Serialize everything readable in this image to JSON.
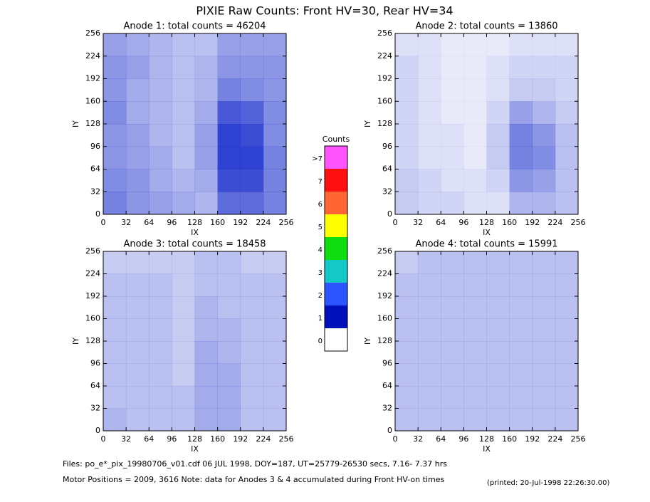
{
  "title": "PIXIE Raw Counts:  Front HV=30, Rear HV=34",
  "chart_data": [
    {
      "type": "heatmap",
      "title": "Anode 1: total counts = 46204",
      "xlabel": "IX",
      "ylabel": "IY",
      "xlim": [
        0,
        256
      ],
      "ylim": [
        0,
        256
      ],
      "xticks": [
        0,
        32,
        64,
        96,
        128,
        160,
        192,
        224,
        256
      ],
      "yticks": [
        0,
        32,
        64,
        96,
        128,
        160,
        192,
        224,
        256
      ],
      "color": "#1a2ecc",
      "values": [
        [
          0.6,
          0.5,
          0.45,
          0.4,
          0.35,
          0.7,
          0.7,
          0.6
        ],
        [
          0.55,
          0.5,
          0.4,
          0.35,
          0.4,
          0.85,
          0.85,
          0.6
        ],
        [
          0.5,
          0.45,
          0.4,
          0.3,
          0.45,
          0.9,
          0.9,
          0.6
        ],
        [
          0.5,
          0.45,
          0.35,
          0.3,
          0.45,
          0.9,
          0.85,
          0.55
        ],
        [
          0.55,
          0.4,
          0.35,
          0.3,
          0.4,
          0.8,
          0.75,
          0.55
        ],
        [
          0.5,
          0.4,
          0.35,
          0.3,
          0.35,
          0.6,
          0.55,
          0.5
        ],
        [
          0.5,
          0.45,
          0.35,
          0.3,
          0.35,
          0.5,
          0.5,
          0.5
        ],
        [
          0.45,
          0.4,
          0.35,
          0.3,
          0.3,
          0.45,
          0.45,
          0.45
        ]
      ]
    },
    {
      "type": "heatmap",
      "title": "Anode 2: total counts = 13860",
      "xlabel": "IX",
      "ylabel": "IY",
      "xlim": [
        0,
        256
      ],
      "ylim": [
        0,
        256
      ],
      "xticks": [
        0,
        32,
        64,
        96,
        128,
        160,
        192,
        224,
        256
      ],
      "yticks": [
        0,
        32,
        64,
        96,
        128,
        160,
        192,
        224,
        256
      ],
      "color": "#1a2ecc",
      "values": [
        [
          0.25,
          0.2,
          0.2,
          0.15,
          0.15,
          0.35,
          0.35,
          0.3
        ],
        [
          0.25,
          0.2,
          0.15,
          0.15,
          0.2,
          0.5,
          0.45,
          0.3
        ],
        [
          0.2,
          0.15,
          0.15,
          0.1,
          0.25,
          0.6,
          0.55,
          0.3
        ],
        [
          0.2,
          0.15,
          0.15,
          0.1,
          0.25,
          0.6,
          0.5,
          0.3
        ],
        [
          0.2,
          0.15,
          0.1,
          0.1,
          0.2,
          0.45,
          0.35,
          0.25
        ],
        [
          0.2,
          0.15,
          0.1,
          0.1,
          0.15,
          0.25,
          0.25,
          0.2
        ],
        [
          0.2,
          0.15,
          0.1,
          0.1,
          0.15,
          0.2,
          0.2,
          0.2
        ],
        [
          0.15,
          0.15,
          0.1,
          0.1,
          0.1,
          0.15,
          0.15,
          0.15
        ]
      ]
    },
    {
      "type": "heatmap",
      "title": "Anode 3: total counts = 18458",
      "xlabel": "IX",
      "ylabel": "IY",
      "xlim": [
        0,
        256
      ],
      "ylim": [
        0,
        256
      ],
      "xticks": [
        0,
        32,
        64,
        96,
        128,
        160,
        192,
        224,
        256
      ],
      "yticks": [
        0,
        32,
        64,
        96,
        128,
        160,
        192,
        224,
        256
      ],
      "color": "#1a2ecc",
      "values": [
        [
          0.35,
          0.3,
          0.3,
          0.3,
          0.4,
          0.4,
          0.3,
          0.3
        ],
        [
          0.3,
          0.3,
          0.3,
          0.3,
          0.4,
          0.4,
          0.3,
          0.3
        ],
        [
          0.3,
          0.3,
          0.3,
          0.25,
          0.4,
          0.4,
          0.3,
          0.3
        ],
        [
          0.3,
          0.3,
          0.3,
          0.25,
          0.4,
          0.35,
          0.3,
          0.3
        ],
        [
          0.3,
          0.3,
          0.3,
          0.25,
          0.35,
          0.35,
          0.3,
          0.3
        ],
        [
          0.3,
          0.3,
          0.3,
          0.25,
          0.35,
          0.3,
          0.3,
          0.3
        ],
        [
          0.3,
          0.3,
          0.3,
          0.25,
          0.3,
          0.3,
          0.3,
          0.3
        ],
        [
          0.25,
          0.25,
          0.25,
          0.25,
          0.3,
          0.3,
          0.25,
          0.25
        ]
      ]
    },
    {
      "type": "heatmap",
      "title": "Anode 4: total counts = 15991",
      "xlabel": "IX",
      "ylabel": "IY",
      "xlim": [
        0,
        256
      ],
      "ylim": [
        0,
        256
      ],
      "xticks": [
        0,
        32,
        64,
        96,
        128,
        160,
        192,
        224,
        256
      ],
      "yticks": [
        0,
        32,
        64,
        96,
        128,
        160,
        192,
        224,
        256
      ],
      "color": "#1a2ecc",
      "values": [
        [
          0.3,
          0.3,
          0.3,
          0.3,
          0.3,
          0.3,
          0.3,
          0.3
        ],
        [
          0.3,
          0.3,
          0.3,
          0.3,
          0.3,
          0.3,
          0.3,
          0.3
        ],
        [
          0.3,
          0.3,
          0.3,
          0.3,
          0.3,
          0.3,
          0.3,
          0.3
        ],
        [
          0.3,
          0.3,
          0.3,
          0.3,
          0.3,
          0.3,
          0.3,
          0.3
        ],
        [
          0.3,
          0.3,
          0.3,
          0.3,
          0.3,
          0.3,
          0.3,
          0.3
        ],
        [
          0.3,
          0.3,
          0.3,
          0.3,
          0.3,
          0.3,
          0.3,
          0.3
        ],
        [
          0.3,
          0.3,
          0.3,
          0.3,
          0.3,
          0.3,
          0.3,
          0.3
        ],
        [
          0.25,
          0.3,
          0.3,
          0.3,
          0.3,
          0.3,
          0.3,
          0.3
        ]
      ]
    }
  ],
  "colorbar": {
    "title": "Counts",
    "levels": [
      {
        "label": "0",
        "color": "#ffffff"
      },
      {
        "label": "1",
        "color": "#0010b8"
      },
      {
        "label": "2",
        "color": "#2d55ff"
      },
      {
        "label": "3",
        "color": "#14c8c8"
      },
      {
        "label": "4",
        "color": "#10dd10"
      },
      {
        "label": "5",
        "color": "#ffff00"
      },
      {
        "label": "6",
        "color": "#ff6633"
      },
      {
        "label": "7",
        "color": "#ff1010"
      },
      {
        "label": ">7",
        "color": "#ff55ff"
      }
    ]
  },
  "footer": {
    "files": "Files: po_e*_pix_19980706_v01.cdf    06 JUL 1998, DOY=187, UT=25779-26530 secs,  7.16- 7.37 hrs",
    "motor": "Motor Positions = 2009, 3616   Note: data for Anodes 3 & 4 accumulated during Front HV-on times",
    "printed": "(printed: 20-Jul-1998 22:26:30.00)"
  }
}
